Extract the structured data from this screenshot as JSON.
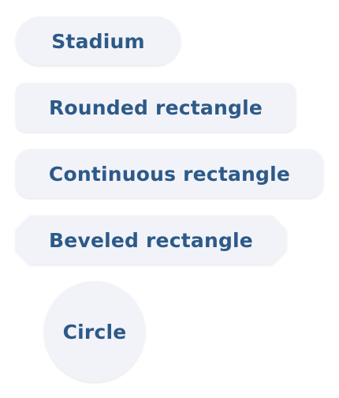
{
  "colors": {
    "button_background": "#f2f3f9",
    "button_text": "#2d5a88",
    "page_background": "#ffffff"
  },
  "buttons": [
    {
      "id": "stadium",
      "label": "Stadium"
    },
    {
      "id": "rounded",
      "label": "Rounded rectangle"
    },
    {
      "id": "continuous",
      "label": "Continuous rectangle"
    },
    {
      "id": "beveled",
      "label": "Beveled rectangle"
    },
    {
      "id": "circle",
      "label": "Circle"
    }
  ]
}
